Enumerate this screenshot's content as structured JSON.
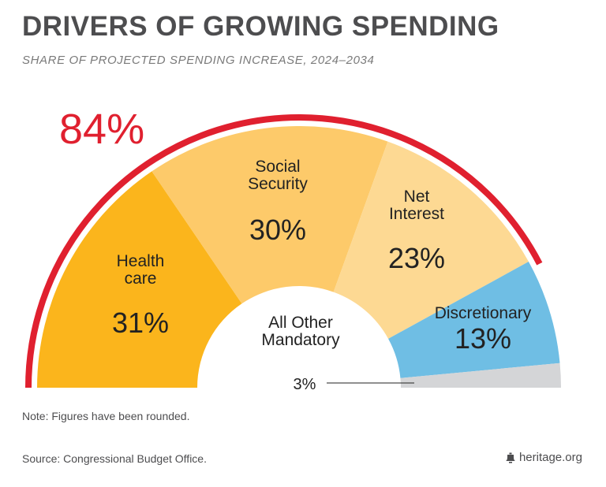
{
  "header": {
    "title": "DRIVERS OF GROWING SPENDING",
    "subtitle": "SHARE OF PROJECTED SPENDING INCREASE, 2024–2034"
  },
  "chart_data": {
    "type": "pie",
    "variant": "semi-donut",
    "title": "DRIVERS OF GROWING SPENDING",
    "subtitle": "SHARE OF PROJECTED SPENDING INCREASE, 2024–2034",
    "unit": "%",
    "slices": [
      {
        "name": "Health care",
        "label_lines": [
          "Health",
          "care"
        ],
        "value": 31,
        "value_label": "31%",
        "color": "#fbb51c"
      },
      {
        "name": "Social Security",
        "label_lines": [
          "Social",
          "Security"
        ],
        "value": 30,
        "value_label": "30%",
        "color": "#fdca6a"
      },
      {
        "name": "Net Interest",
        "label_lines": [
          "Net",
          "Interest"
        ],
        "value": 23,
        "value_label": "23%",
        "color": "#fdd993"
      },
      {
        "name": "Discretionary",
        "label_lines": [
          "Discretionary"
        ],
        "value": 13,
        "value_label": "13%",
        "color": "#6fbee4"
      },
      {
        "name": "All Other Mandatory",
        "label_lines": [
          "All Other",
          "Mandatory"
        ],
        "value": 3,
        "value_label": "3%",
        "color": "#d4d5d7"
      }
    ],
    "highlight": {
      "value_label": "84%",
      "covers": [
        "Health care",
        "Social Security",
        "Net Interest"
      ],
      "color": "#e0202f"
    }
  },
  "footer": {
    "note": "Note: Figures have been rounded.",
    "source": "Source: Congressional Budget Office.",
    "brand": "heritage.org",
    "brand_icon": "bell-icon"
  }
}
